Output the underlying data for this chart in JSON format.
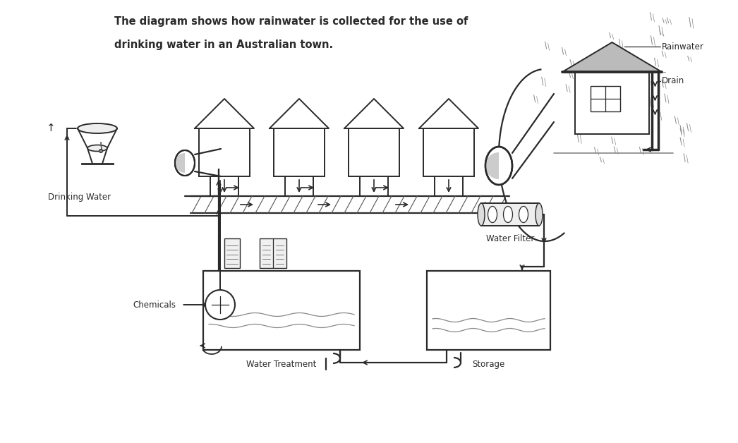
{
  "title_line1": "The diagram shows how rainwater is collected for the use of",
  "title_line2": "drinking water in an Australian town.",
  "labels": {
    "rainwater": "Rainwater",
    "drain": "Drain",
    "drinking_water": "Drinking Water",
    "water_filter": "Water Filter",
    "chemicals": "Chemicals",
    "water_treatment": "Water Treatment",
    "storage": "Storage"
  },
  "bg_color": "#ffffff",
  "lc": "#2a2a2a"
}
